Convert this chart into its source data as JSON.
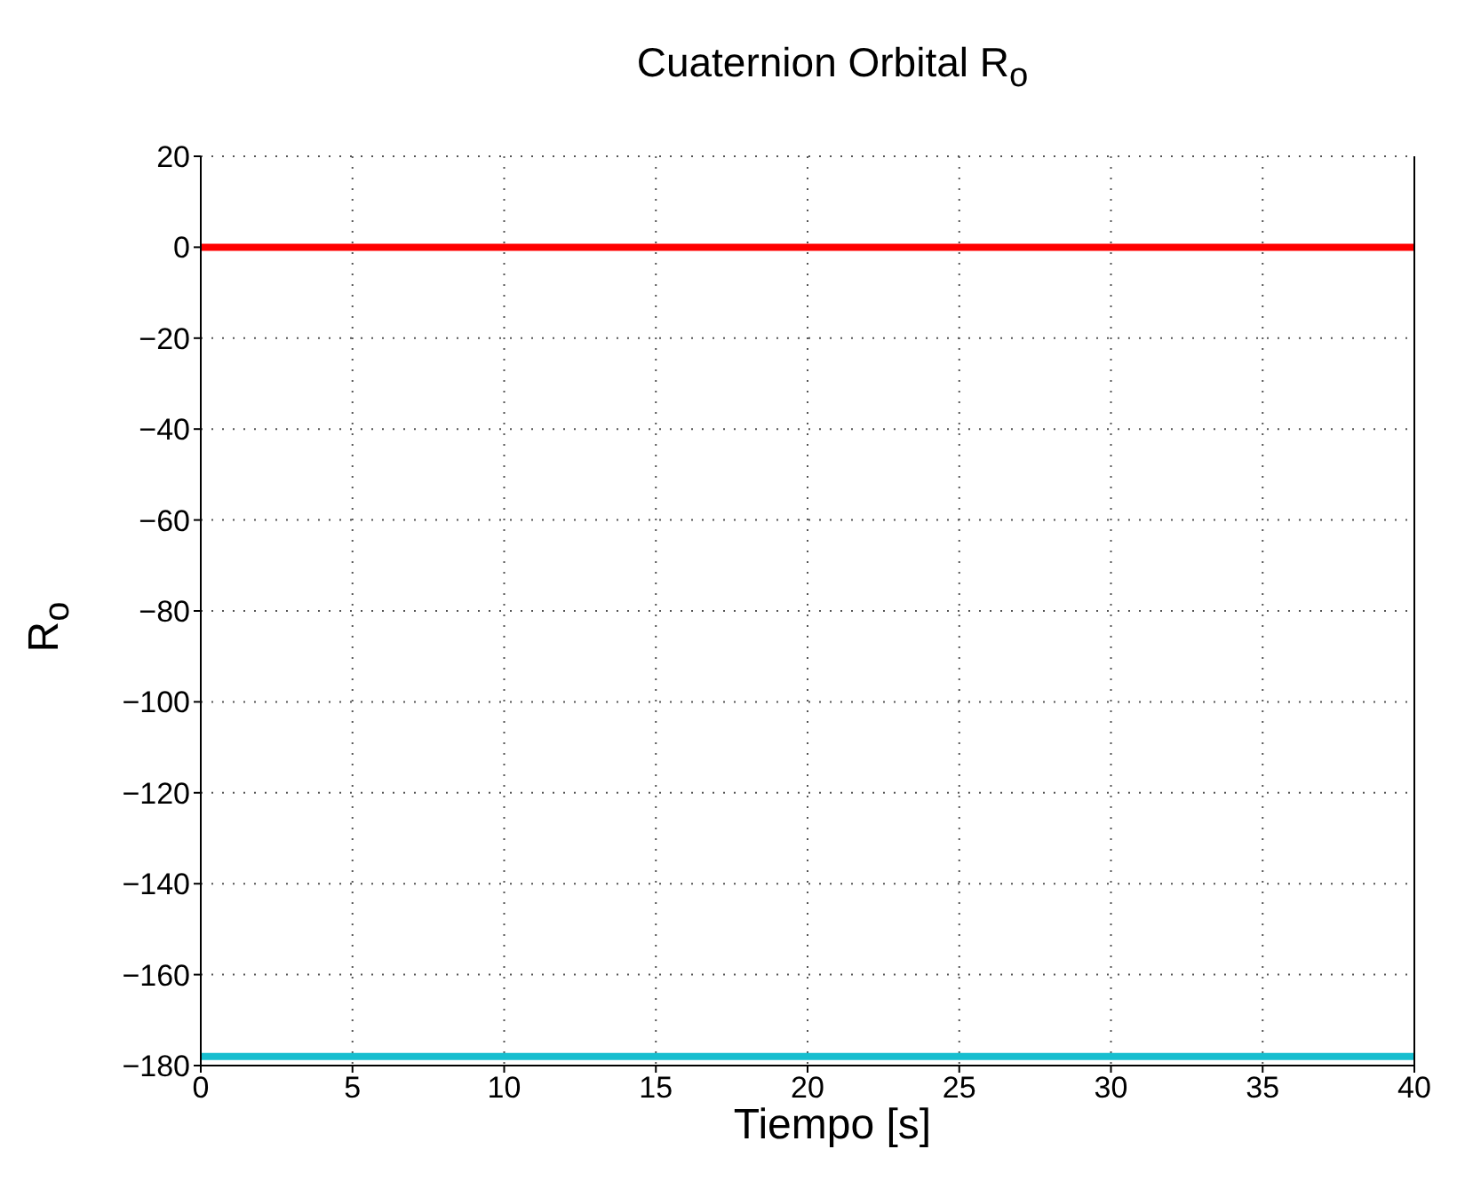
{
  "chart_data": {
    "type": "line",
    "title": "Cuaternion Orbital R$_{o}$",
    "xlabel": "Tiempo [s]",
    "ylabel": "R$_{o}$",
    "x": [
      0,
      40
    ],
    "series": [
      {
        "color": "#ff0000",
        "values": [
          0,
          0
        ]
      },
      {
        "color": "#17becf",
        "values": [
          -178,
          -178
        ]
      }
    ],
    "xlim": [
      0,
      40
    ],
    "xticks": [
      0,
      5,
      10,
      15,
      20,
      25,
      30,
      35,
      40
    ],
    "ylim": [
      -180,
      20
    ],
    "yticks": [
      -180,
      -160,
      -140,
      -120,
      -100,
      -80,
      -60,
      -40,
      -20,
      0,
      20
    ],
    "grid": true,
    "marker": "none",
    "line_style": "solid"
  }
}
